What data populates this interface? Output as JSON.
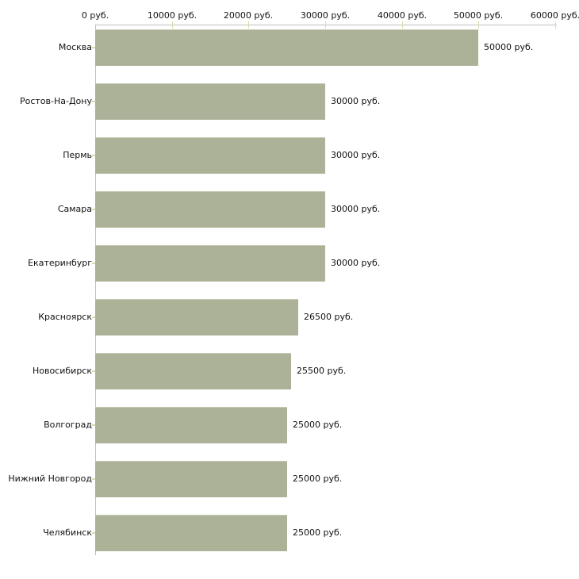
{
  "chart_data": {
    "type": "bar",
    "orientation": "horizontal",
    "title": "",
    "categories": [
      "Москва",
      "Ростов-На-Дону",
      "Пермь",
      "Самара",
      "Екатеринбург",
      "Красноярск",
      "Новосибирск",
      "Волгоград",
      "Нижний Новгород",
      "Челябинск"
    ],
    "values": [
      50000,
      30000,
      30000,
      30000,
      30000,
      26500,
      25500,
      25000,
      25000,
      25000
    ],
    "value_labels": [
      "50000 руб.",
      "30000 руб.",
      "30000 руб.",
      "30000 руб.",
      "30000 руб.",
      "26500 руб.",
      "25500 руб.",
      "25000 руб.",
      "25000 руб.",
      "25000 руб."
    ],
    "xlabel": "",
    "ylabel": "",
    "x_axis": {
      "position": "top",
      "min": 0,
      "max": 60000,
      "ticks": [
        0,
        10000,
        20000,
        30000,
        40000,
        50000,
        60000
      ],
      "tick_labels": [
        "0 руб.",
        "10000 руб.",
        "20000 руб.",
        "30000 руб.",
        "40000 руб.",
        "50000 руб.",
        "60000 руб."
      ]
    },
    "grid": "off",
    "legend": "none",
    "colors": {
      "bar": "#acb298",
      "bar_top_edge": "#c6cbb4",
      "axis_line": "#c0c0c0",
      "tick_mark": "#d8dcae",
      "text": "#111111",
      "background": "#ffffff"
    }
  }
}
